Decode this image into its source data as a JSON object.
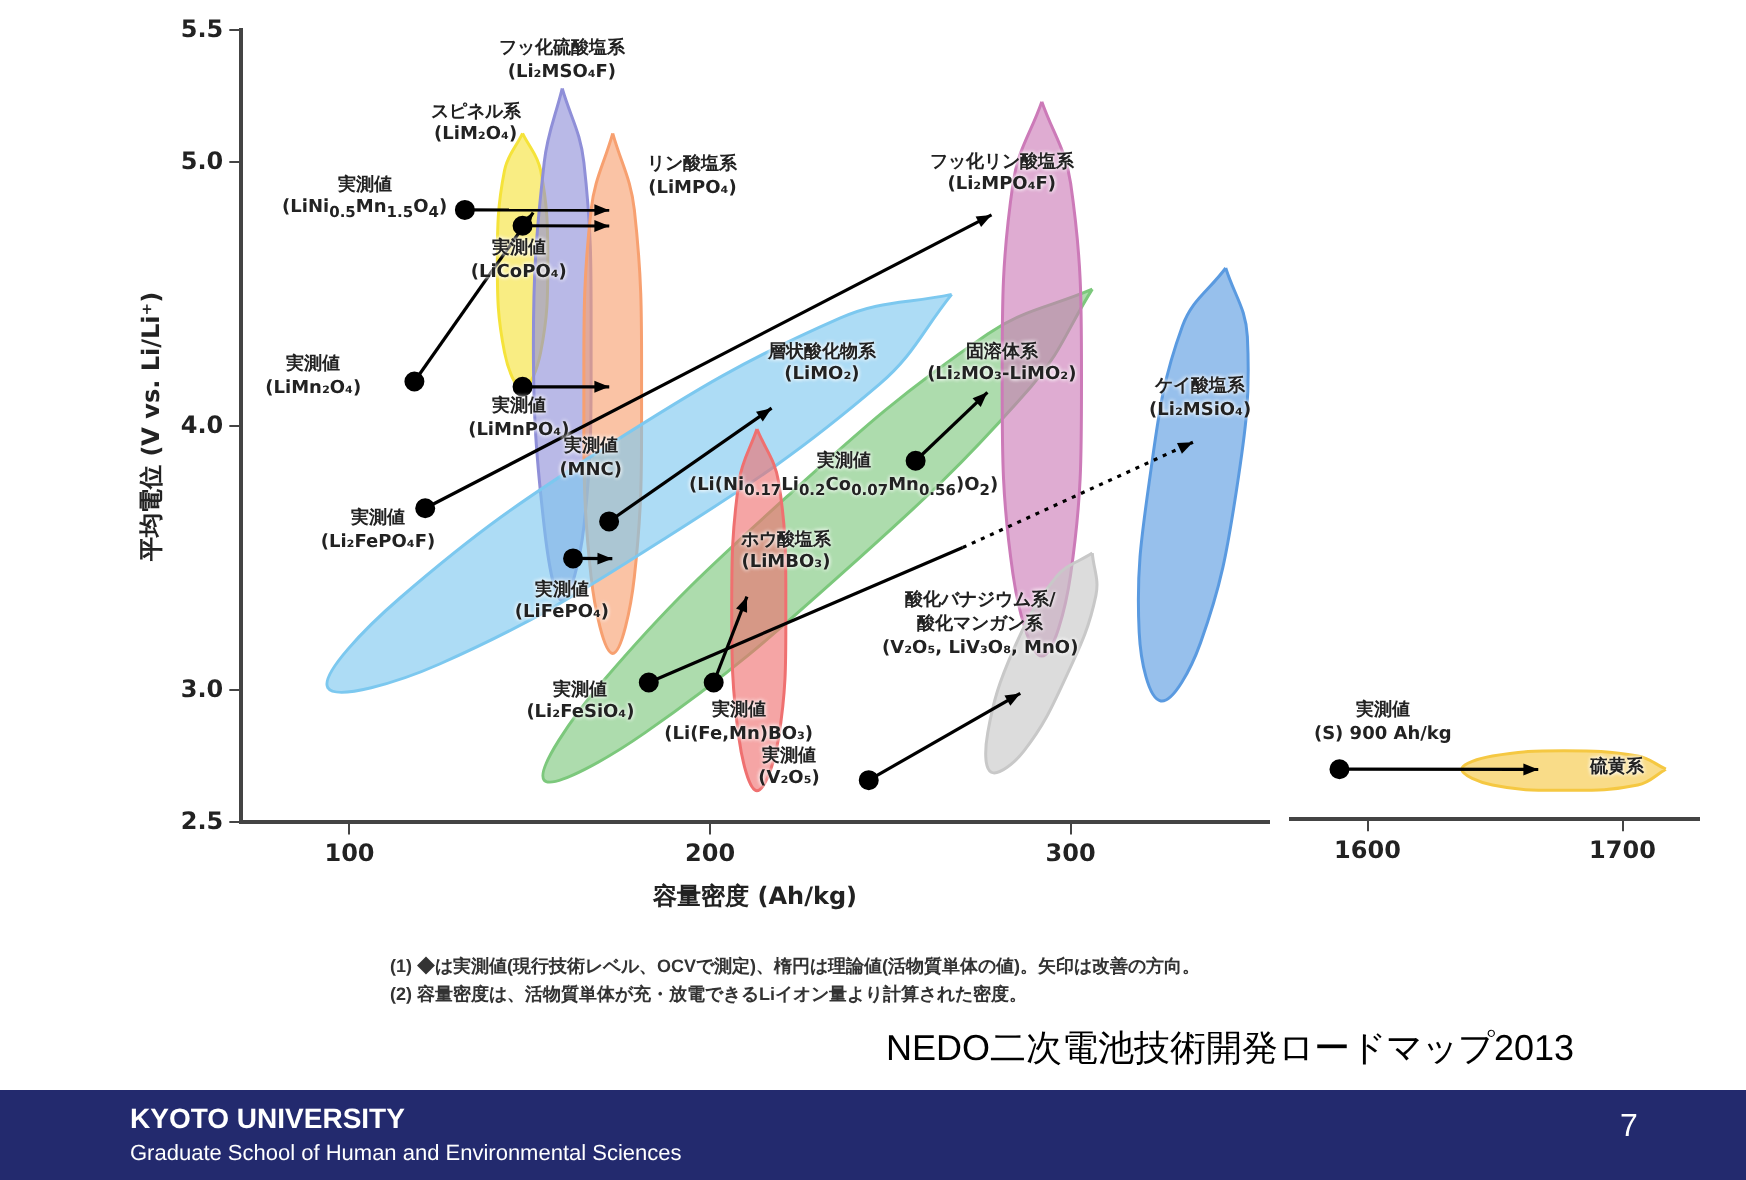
{
  "chart_data": [
    {
      "type": "scatter",
      "xlabel": "容量密度 (Ah/kg)",
      "ylabel": "平均電位 (V vs. Li/Li⁺)",
      "xlim": [
        70,
        355
      ],
      "xticks": [
        100,
        200,
        300
      ],
      "ylim": [
        2.5,
        5.5
      ],
      "yticks": [
        2.5,
        {
          "value": 3,
          "label": "3.0"
        },
        {
          "value": 4,
          "label": "4.0"
        },
        {
          "value": 5,
          "label": "5.0"
        },
        5.5
      ],
      "grid": false,
      "legend": false,
      "series": [
        {
          "type": "area",
          "color": "#f5e33a",
          "x": [
            148,
            153,
            155,
            153,
            148,
            143,
            141,
            143
          ],
          "values": [
            5.11,
            4.97,
            4.62,
            4.28,
            4.14,
            4.28,
            4.62,
            4.97
          ]
        },
        {
          "type": "area",
          "color": "#8f8fd8",
          "x": [
            159,
            165,
            167,
            165,
            159,
            154,
            151,
            154
          ],
          "values": [
            5.28,
            5.0,
            4.31,
            3.62,
            3.34,
            3.62,
            4.31,
            5.0
          ]
        },
        {
          "type": "area",
          "color": "#f7a070",
          "x": [
            173,
            179,
            181,
            179,
            173,
            167,
            165,
            167
          ],
          "values": [
            5.11,
            4.82,
            4.13,
            3.43,
            3.14,
            3.43,
            4.13,
            4.82
          ]
        },
        {
          "type": "area",
          "color": "#7cc8ef",
          "x": [
            267,
            247,
            188,
            125,
            94,
            114,
            172,
            236
          ],
          "values": [
            4.5,
            4.16,
            3.58,
            3.1,
            3.01,
            3.35,
            3.93,
            4.41
          ]
        },
        {
          "type": "area",
          "color": "#7cc87c",
          "x": [
            306,
            289,
            238,
            182,
            154,
            170,
            221,
            277
          ],
          "values": [
            4.52,
            4.15,
            3.46,
            2.84,
            2.66,
            3.03,
            3.73,
            4.35
          ]
        },
        {
          "type": "area",
          "color": "#ef7070",
          "x": [
            213,
            219,
            221,
            219,
            213,
            208,
            206,
            208
          ],
          "values": [
            3.99,
            3.79,
            3.31,
            2.82,
            2.62,
            2.82,
            3.31,
            3.79
          ]
        },
        {
          "type": "area",
          "color": "#cc7ab8",
          "x": [
            292,
            300,
            303,
            300,
            292,
            284,
            281,
            284
          ],
          "values": [
            5.23,
            4.92,
            4.18,
            3.44,
            3.13,
            3.44,
            4.18,
            4.92
          ]
        },
        {
          "type": "area",
          "color": "#c8c8c8",
          "x": [
            306,
            307,
            299,
            287,
            278,
            277,
            284,
            296
          ],
          "values": [
            3.52,
            3.36,
            3.06,
            2.77,
            2.69,
            2.84,
            3.15,
            3.43
          ]
        },
        {
          "type": "area",
          "color": "#5a9ae0",
          "x": [
            343,
            349,
            346,
            336,
            325,
            319,
            322,
            331
          ],
          "values": [
            4.6,
            4.34,
            3.76,
            3.18,
            2.96,
            3.22,
            3.81,
            4.38
          ]
        },
        {
          "type": "scatter",
          "color": "#000000",
          "marker": "circle",
          "x": [
            132,
            148,
            118,
            148,
            121,
            172,
            162,
            183,
            201,
            257,
            244
          ],
          "values": [
            4.82,
            4.76,
            4.17,
            4.15,
            3.69,
            3.64,
            3.5,
            3.03,
            3.03,
            3.87,
            2.66
          ]
        }
      ],
      "annotations": [
        "フッ化硫酸塩系\n(Li₂MSO₄F)",
        "スピネル系\n(LiM₂O₄)",
        "リン酸塩系\n(LiMPO₄)",
        "実測値\n(LiNi$_{0.5}$Mn$_{1.5}$O$_{4}$)",
        "実測値\n(LiCoPO₄)",
        "実測値\n(LiMn₂O₄)",
        "実測値\n(LiMnPO₄)",
        "実測値\n(Li₂FePO₄F)",
        "実測値\n(MNC)",
        "実測値\n(LiFePO₄)",
        "層状酸化物系\n(LiMO₂)",
        "固溶体系\n(Li₂MO₃-LiMO₂)",
        "フッ化リン酸塩系\n(Li₂MPO₄F)",
        "実測値\n(Li(Ni$_{0.17}$Li$_{0.2}$Co$_{0.07}$Mn$_{0.56}$)O$_{2}$)",
        "ケイ酸塩系\n(Li₂MSiO₄)",
        "ホウ酸塩系\n(LiMBO₃)",
        "実測値\n(Li₂FeSiO₄)",
        "実測値\n(Li(Fe,Mn)BO₃)",
        "酸化バナジウム系/\n酸化マンガン系\n(V₂O₅, LiV₃O₈, MnO)",
        "実測値\n(V₂O₅)",
        "(1) ◆は実測値(現行技術レベル、OCVで測定)、楕円は理論値(活物質単体の値)。矢印は改善の方向。",
        "(2) 容量密度は、活物質単体が充・放電できるLiイオン量より計算された密度。",
        "NEDO二次電池技術開発ロードマップ2013",
        "KYOTO UNIVERSITY",
        "Graduate School of Human and Environmental Sciences",
        "7"
      ]
    },
    {
      "type": "scatter",
      "xlim": [
        1570,
        1730
      ],
      "xticks": [
        1600,
        1700
      ],
      "ylim": [
        2.5,
        5.5
      ],
      "tick_labels": "x",
      "grid": false,
      "legend": false,
      "series": [
        {
          "type": "area",
          "color": "#f5c842",
          "x": [
            1717,
            1706,
            1677,
            1649,
            1637,
            1649,
            1677,
            1706
          ],
          "values": [
            2.69,
            2.63,
            2.61,
            2.63,
            2.69,
            2.74,
            2.76,
            2.74
          ]
        },
        {
          "type": "scatter",
          "color": "#000000",
          "marker": "circle",
          "x": [
            1589
          ],
          "values": [
            2.69
          ]
        }
      ],
      "annotations": [
        "実測値\n(S) 900 Ah/kg",
        "硫黄系"
      ]
    }
  ]
}
